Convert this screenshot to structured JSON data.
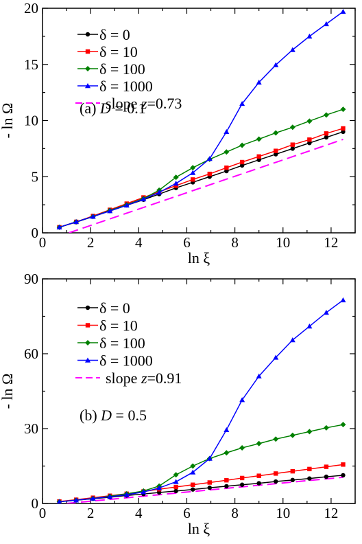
{
  "colors": {
    "delta_0": "#000000",
    "delta_10": "#ff0000",
    "delta_100": "#008000",
    "delta_1000": "#0000ff",
    "slope": "#ff00ff"
  },
  "chart_data": [
    {
      "type": "line",
      "annotation": "(a) D = 0.1",
      "annotation_parts": {
        "prefix": "(a) ",
        "var": "D",
        "suffix": " = 0.1"
      },
      "xlabel": "ln ξ",
      "ylabel": "- ln Ω",
      "xlim": [
        0,
        13
      ],
      "ylim": [
        0,
        20
      ],
      "xticks": [
        "0",
        "2",
        "4",
        "6",
        "8",
        "10",
        "12"
      ],
      "yticks": [
        "0",
        "5",
        "10",
        "15",
        "20"
      ],
      "legend_position": "top-left",
      "x": [
        0.7,
        1.4,
        2.1,
        2.8,
        3.5,
        4.2,
        4.85,
        5.55,
        6.25,
        6.95,
        7.65,
        8.3,
        9.0,
        9.7,
        10.4,
        11.1,
        11.8,
        12.5
      ],
      "series": [
        {
          "name": "δ = 0",
          "marker": "circle",
          "color_key": "delta_0",
          "values": [
            0.5,
            0.95,
            1.45,
            1.95,
            2.45,
            2.95,
            3.45,
            4.0,
            4.5,
            5.0,
            5.5,
            6.0,
            6.5,
            7.0,
            7.5,
            8.0,
            8.5,
            9.0
          ]
        },
        {
          "name": "δ = 10",
          "marker": "square",
          "color_key": "delta_10",
          "values": [
            0.5,
            0.98,
            1.5,
            2.05,
            2.6,
            3.15,
            3.65,
            4.2,
            4.75,
            5.25,
            5.8,
            6.3,
            6.8,
            7.3,
            7.85,
            8.3,
            8.85,
            9.3
          ]
        },
        {
          "name": "δ = 100",
          "marker": "diamond",
          "color_key": "delta_100",
          "values": [
            0.5,
            0.98,
            1.45,
            2.0,
            2.5,
            3.05,
            3.8,
            4.95,
            5.8,
            6.55,
            7.2,
            7.8,
            8.35,
            8.9,
            9.4,
            9.95,
            10.5,
            11.0
          ]
        },
        {
          "name": "δ = 1000",
          "marker": "triangle",
          "color_key": "delta_1000",
          "values": [
            0.5,
            0.98,
            1.45,
            1.95,
            2.45,
            3.0,
            3.6,
            4.4,
            5.35,
            6.6,
            9.0,
            11.5,
            13.4,
            14.95,
            16.3,
            17.5,
            18.6,
            19.7
          ]
        }
      ],
      "slope_line": {
        "name": "slope z=0.73",
        "label_prefix": "slope ",
        "label_var": "z",
        "label_suffix": "=0.73",
        "color_key": "slope",
        "slope": 0.73,
        "x_range": [
          1.1,
          12.5
        ],
        "values": [
          0.0,
          8.32
        ]
      }
    },
    {
      "type": "line",
      "annotation": "(b) D = 0.5",
      "annotation_parts": {
        "prefix": "(b) ",
        "var": "D",
        "suffix": " = 0.5"
      },
      "xlabel": "ln ξ",
      "ylabel": "- ln Ω",
      "xlim": [
        0,
        13
      ],
      "ylim": [
        0,
        90
      ],
      "xticks": [
        "0",
        "2",
        "4",
        "6",
        "8",
        "10",
        "12"
      ],
      "yticks": [
        "0",
        "30",
        "60",
        "90"
      ],
      "legend_position": "top-left",
      "x": [
        0.7,
        1.4,
        2.1,
        2.8,
        3.5,
        4.2,
        4.85,
        5.55,
        6.25,
        6.95,
        7.65,
        8.3,
        9.0,
        9.7,
        10.4,
        11.1,
        11.8,
        12.5
      ],
      "series": [
        {
          "name": "δ = 0",
          "marker": "circle",
          "color_key": "delta_0",
          "values": [
            0.7,
            1.3,
            1.9,
            2.5,
            3.2,
            3.8,
            4.4,
            5.0,
            5.6,
            6.3,
            6.9,
            7.5,
            8.1,
            8.8,
            9.4,
            10.0,
            10.7,
            11.3
          ]
        },
        {
          "name": "δ = 10",
          "marker": "square",
          "color_key": "delta_10",
          "values": [
            0.8,
            1.5,
            2.3,
            3.1,
            3.9,
            4.8,
            5.7,
            6.6,
            7.5,
            8.4,
            9.3,
            10.2,
            11.1,
            12.0,
            12.9,
            13.8,
            14.7,
            15.6
          ]
        },
        {
          "name": "δ = 100",
          "marker": "diamond",
          "color_key": "delta_100",
          "values": [
            0.7,
            1.3,
            2.0,
            2.9,
            3.9,
            5.0,
            7.0,
            11.5,
            15.0,
            18.0,
            20.3,
            22.3,
            24.0,
            25.8,
            27.3,
            28.8,
            30.3,
            31.6
          ]
        },
        {
          "name": "δ = 1000",
          "marker": "triangle",
          "color_key": "delta_1000",
          "values": [
            0.7,
            1.3,
            2.0,
            2.7,
            3.5,
            4.6,
            6.2,
            8.7,
            12.5,
            18.0,
            29.5,
            41.5,
            51.0,
            58.5,
            65.5,
            71.0,
            76.5,
            81.5
          ]
        }
      ],
      "slope_line": {
        "name": "slope z=0.91",
        "label_prefix": "slope ",
        "label_var": "z",
        "label_suffix": "=0.91",
        "color_key": "slope",
        "slope": 0.91,
        "x_range": [
          1.0,
          12.5
        ],
        "values": [
          0.0,
          10.5
        ]
      }
    }
  ]
}
